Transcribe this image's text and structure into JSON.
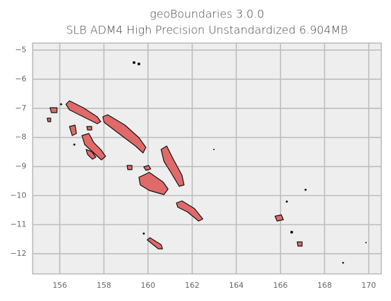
{
  "chart_data": {
    "type": "map",
    "title": "geoBoundaries 3.0.0",
    "subtitle": "SLB ADM4 High Precision Unstandardized 6.904MB",
    "xlim": [
      154.77,
      170.57
    ],
    "ylim": [
      -12.69,
      -4.76
    ],
    "xticks": [
      156,
      158,
      160,
      162,
      164,
      166,
      168,
      170
    ],
    "yticks": [
      {
        "value": -5,
        "label": "−5"
      },
      {
        "value": -6,
        "label": "−6"
      },
      {
        "value": -7,
        "label": "−7"
      },
      {
        "value": -8,
        "label": "−8"
      },
      {
        "value": -9,
        "label": "−9"
      },
      {
        "value": -10,
        "label": "−10"
      },
      {
        "value": -11,
        "label": "−11"
      },
      {
        "value": -12,
        "label": "−12"
      }
    ],
    "grid": true
  }
}
